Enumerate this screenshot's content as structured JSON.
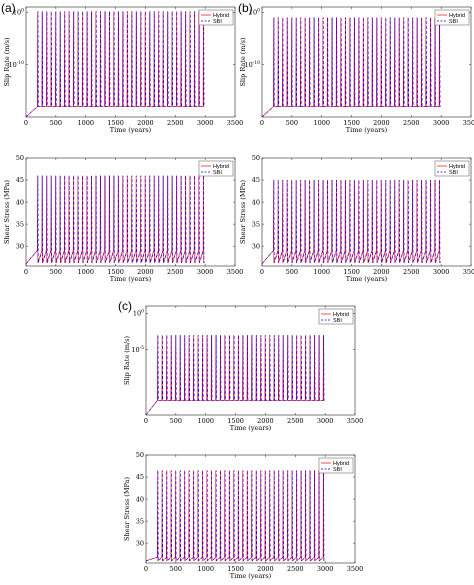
{
  "panel_labels": [
    "(a)",
    "(b)",
    "(c)"
  ],
  "chart_data": [
    {
      "id": "a-slip",
      "panel": "(a)",
      "type": "line",
      "xlabel": "Time (years)",
      "ylabel": "Slip Rate (m/s)",
      "yscale": "log",
      "xlim": [
        0,
        3500
      ],
      "xticks": [
        0,
        500,
        1000,
        1500,
        2000,
        2500,
        3000,
        3500
      ],
      "ylim": [
        1e-20,
        10
      ],
      "yticks": [
        {
          "v": 1,
          "label": "10^0"
        },
        {
          "v": 1e-10,
          "label": "10^-10"
        }
      ],
      "interseismic": 1e-18,
      "peak": 1.5,
      "first_event": 190,
      "period": 75,
      "last_event": 2995,
      "initial": {
        "x": [
          0,
          190
        ],
        "y": [
          1e-20,
          1e-18
        ]
      },
      "series": [
        {
          "name": "Hybrid",
          "color": "#ff0000",
          "dash": ""
        },
        {
          "name": "SBI",
          "color": "#0000ff",
          "dash": "3,2"
        }
      ],
      "legend": "top-right"
    },
    {
      "id": "a-stress",
      "panel": "(a)",
      "type": "line",
      "xlabel": "Time (years)",
      "ylabel": "Shear Stress (MPa)",
      "yscale": "linear",
      "xlim": [
        0,
        3500
      ],
      "xticks": [
        0,
        500,
        1000,
        1500,
        2000,
        2500,
        3000,
        3500
      ],
      "ylim": [
        25.5,
        50
      ],
      "yticks": [
        {
          "v": 30,
          "label": "30"
        },
        {
          "v": 35,
          "label": "35"
        },
        {
          "v": 40,
          "label": "40"
        },
        {
          "v": 45,
          "label": "45"
        },
        {
          "v": 50,
          "label": "50"
        }
      ],
      "peak": 46,
      "drop_to": 26.2,
      "recover_to": 29,
      "first_event": 190,
      "period": 75,
      "last_event": 2995,
      "initial": {
        "x": [
          0,
          190
        ],
        "y": [
          26,
          29
        ]
      },
      "series": [
        {
          "name": "Hybrid",
          "color": "#ff0000",
          "dash": ""
        },
        {
          "name": "SBI",
          "color": "#0000ff",
          "dash": "3,2"
        }
      ],
      "legend": "top-right"
    },
    {
      "id": "b-slip",
      "panel": "(b)",
      "type": "line",
      "xlabel": "Time (years)",
      "ylabel": "Slip Rate (m/s)",
      "yscale": "log",
      "xlim": [
        0,
        3500
      ],
      "xticks": [
        0,
        500,
        1000,
        1500,
        2000,
        2500,
        3000,
        3500
      ],
      "ylim": [
        1e-20,
        10
      ],
      "yticks": [
        {
          "v": 1,
          "label": "10^0"
        },
        {
          "v": 1e-10,
          "label": "10^-10"
        }
      ],
      "interseismic": 1e-18,
      "peak": 0.1,
      "first_event": 190,
      "period": 75,
      "last_event": 2995,
      "initial": {
        "x": [
          0,
          190
        ],
        "y": [
          1e-20,
          1e-18
        ]
      },
      "series": [
        {
          "name": "Hybrid",
          "color": "#ff0000",
          "dash": ""
        },
        {
          "name": "SBI",
          "color": "#0000ff",
          "dash": "3,2"
        }
      ],
      "legend": "top-right"
    },
    {
      "id": "b-stress",
      "panel": "(b)",
      "type": "line",
      "xlabel": "Time (years)",
      "ylabel": "Shear Stress (MPa)",
      "yscale": "linear",
      "xlim": [
        0,
        3500
      ],
      "xticks": [
        0,
        500,
        1000,
        1500,
        2000,
        2500,
        3000,
        3500
      ],
      "ylim": [
        25.5,
        50
      ],
      "yticks": [
        {
          "v": 30,
          "label": "30"
        },
        {
          "v": 35,
          "label": "35"
        },
        {
          "v": 40,
          "label": "40"
        },
        {
          "v": 45,
          "label": "45"
        },
        {
          "v": 50,
          "label": "50"
        }
      ],
      "peak": 45,
      "drop_to": 26.2,
      "recover_to": 29,
      "first_event": 190,
      "period": 75,
      "last_event": 2995,
      "initial": {
        "x": [
          0,
          190
        ],
        "y": [
          26,
          29
        ]
      },
      "series": [
        {
          "name": "Hybrid",
          "color": "#ff0000",
          "dash": ""
        },
        {
          "name": "SBI",
          "color": "#0000ff",
          "dash": "3,2"
        }
      ],
      "legend": "top-right"
    },
    {
      "id": "c-slip",
      "panel": "(c)",
      "type": "line",
      "xlabel": "Time (years)",
      "ylabel": "Slip Rate (m/s)",
      "yscale": "log",
      "xlim": [
        0,
        3500
      ],
      "xticks": [
        0,
        500,
        1000,
        1500,
        2000,
        2500,
        3000,
        3500
      ],
      "ylim": [
        1e-14,
        10
      ],
      "yticks": [
        {
          "v": 1,
          "label": "10^0"
        },
        {
          "v": 1e-05,
          "label": "10^-5"
        }
      ],
      "interseismic": 1e-12,
      "peak": 0.001,
      "first_event": 190,
      "period": 75,
      "last_event": 2995,
      "initial": {
        "x": [
          0,
          190
        ],
        "y": [
          1e-14,
          1e-12
        ]
      },
      "series": [
        {
          "name": "Hybrid",
          "color": "#ff0000",
          "dash": ""
        },
        {
          "name": "SBI",
          "color": "#0000ff",
          "dash": "3,2"
        }
      ],
      "legend": "top-right"
    },
    {
      "id": "c-stress",
      "panel": "(c)",
      "type": "line",
      "xlabel": "Time (years)",
      "ylabel": "Shear Stress (MPa)",
      "yscale": "linear",
      "xlim": [
        0,
        3500
      ],
      "xticks": [
        0,
        500,
        1000,
        1500,
        2000,
        2500,
        3000,
        3500
      ],
      "ylim": [
        25.5,
        50
      ],
      "yticks": [
        {
          "v": 30,
          "label": "30"
        },
        {
          "v": 35,
          "label": "35"
        },
        {
          "v": 40,
          "label": "40"
        },
        {
          "v": 45,
          "label": "45"
        },
        {
          "v": 50,
          "label": "50"
        }
      ],
      "peak": 46.5,
      "drop_to": 26.0,
      "recover_to": 26.8,
      "first_event": 190,
      "period": 75,
      "last_event": 2995,
      "initial": {
        "x": [
          0,
          190
        ],
        "y": [
          26,
          26.8
        ]
      },
      "series": [
        {
          "name": "Hybrid",
          "color": "#ff0000",
          "dash": ""
        },
        {
          "name": "SBI",
          "color": "#0000ff",
          "dash": "3,2"
        }
      ],
      "legend": "top-right"
    }
  ]
}
